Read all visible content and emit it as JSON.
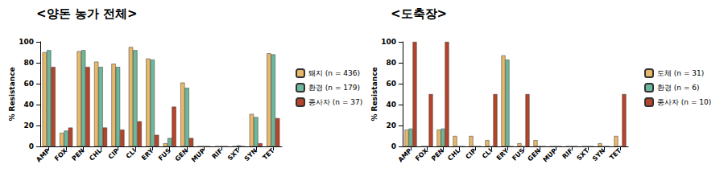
{
  "chart_data": [
    {
      "type": "bar",
      "title": "<양돈 농가 전체>",
      "y_label": "% Resistance",
      "categories": [
        "AMP",
        "FOX",
        "PEN",
        "CHL",
        "CIP",
        "CLI",
        "ERY",
        "FUS",
        "GEN",
        "MUP",
        "RIF",
        "SXT",
        "SYN",
        "TET"
      ],
      "series": [
        {
          "name": "돼지 (n = 436)",
          "color": "#E8B86A",
          "values": [
            90,
            13,
            91,
            81,
            79,
            95,
            84,
            3,
            61,
            0,
            0,
            0,
            31,
            89
          ]
        },
        {
          "name": "환경 (n = 179)",
          "color": "#6DB89B",
          "values": [
            92,
            15,
            92,
            76,
            76,
            92,
            83,
            8,
            56,
            0,
            0,
            1,
            28,
            88
          ]
        },
        {
          "name": "종사자 (n = 37)",
          "color": "#B5442B",
          "values": [
            76,
            18,
            76,
            18,
            16,
            24,
            11,
            38,
            8,
            0,
            0,
            0,
            3,
            27
          ]
        }
      ],
      "ylim": [
        0,
        100
      ],
      "yticks": [
        0,
        20,
        40,
        60,
        80,
        100
      ],
      "grid": false,
      "legend": "right"
    },
    {
      "type": "bar",
      "title": "<도축장>",
      "y_label": "% Resistance",
      "categories": [
        "AMP",
        "FOX",
        "PEN",
        "CHL",
        "CIP",
        "CLI",
        "ERY",
        "FUS",
        "GEN",
        "MUP",
        "RIF",
        "SXT",
        "SYN",
        "TET"
      ],
      "series": [
        {
          "name": "도체 (n = 31)",
          "color": "#E8B86A",
          "values": [
            16,
            0,
            16,
            10,
            10,
            6,
            87,
            3,
            6,
            0,
            0,
            0,
            3,
            10
          ]
        },
        {
          "name": "환경 (n = 6)",
          "color": "#6DB89B",
          "values": [
            17,
            0,
            17,
            0,
            0,
            0,
            83,
            0,
            0,
            0,
            0,
            0,
            0,
            0
          ]
        },
        {
          "name": "종사자 (n = 10)",
          "color": "#B5442B",
          "values": [
            100,
            50,
            100,
            0,
            0,
            50,
            0,
            50,
            0,
            0,
            0,
            0,
            0,
            50
          ]
        }
      ],
      "ylim": [
        0,
        100
      ],
      "yticks": [
        0,
        20,
        40,
        60,
        80,
        100
      ],
      "grid": false,
      "legend": "right"
    }
  ]
}
